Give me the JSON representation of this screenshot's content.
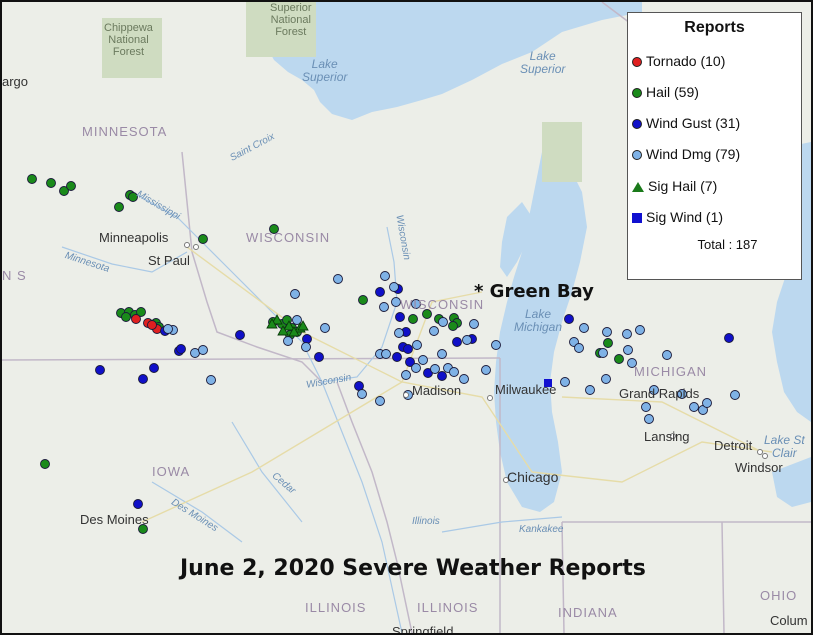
{
  "legend": {
    "title": "Reports",
    "items": [
      {
        "label": "Tornado (10)",
        "symbol": "circle",
        "color": "#e02020"
      },
      {
        "label": "Hail (59)",
        "symbol": "circle",
        "color": "#1a8a1a"
      },
      {
        "label": "Wind Gust (31)",
        "symbol": "circle",
        "color": "#1010c8"
      },
      {
        "label": "Wind Dmg (79)",
        "symbol": "circle",
        "color": "#7fb2e6"
      },
      {
        "label": "Sig Hail (7)",
        "symbol": "triangle",
        "color": "#1a7a1a"
      },
      {
        "label": "Sig Wind (1)",
        "symbol": "square",
        "color": "#1010d0"
      }
    ],
    "total": "Total : 187"
  },
  "title": "June 2, 2020 Severe Weather Reports",
  "highlight": {
    "label": "* Green Bay"
  },
  "states": {
    "minnesota": "MINNESOTA",
    "wisconsin_west": "WISCONSIN",
    "wisconsin_east": "WISCONSIN",
    "iowa": "IOWA",
    "michigan": "MICHIGAN",
    "illinois_west": "ILLINOIS",
    "illinois_east": "ILLINOIS",
    "indiana": "INDIANA",
    "ohio": "OHIO",
    "ns": "N S"
  },
  "cities": {
    "minneapolis": "Minneapolis",
    "st_paul": "St Paul",
    "madison": "Madison",
    "milwaukee": "Milwaukee",
    "chicago": "Chicago",
    "des_moines": "Des Moines",
    "grand_rapids": "Grand Rapids",
    "lansing": "Lansing",
    "detroit": "Detroit",
    "windsor": "Windsor",
    "springfield": "Springfield",
    "columbus": "Colum",
    "fargo": "argo"
  },
  "waters": {
    "lake_superior_1": "Lake\nSuperior",
    "lake_superior_2": "Lake\nSuperior",
    "lake_michigan": "Lake\nMichigan",
    "lake_st_clair": "Lake St\nClair"
  },
  "forests": {
    "chippewa": "Chippewa\nNational\nForest",
    "superior": "Superior\nNational\nForest"
  },
  "rivers": {
    "st_croix": "Saint Croix",
    "mississippi": "Mississippi",
    "minnesota": "Minnesota",
    "wisconsin_river_n": "Wisconsin",
    "wisconsin_river_s": "Wisconsin",
    "cedar": "Cedar",
    "des_moines": "Des Moines",
    "illinois": "Illinois",
    "kankakee": "Kankakee"
  }
}
